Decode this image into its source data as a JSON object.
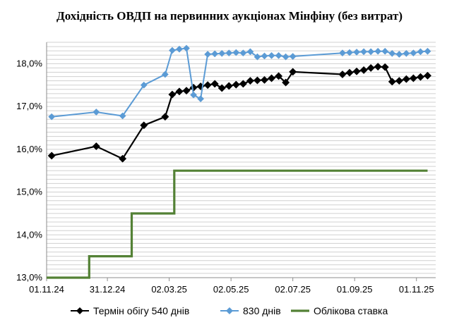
{
  "chart_data": {
    "type": "line",
    "title": "Дохідність ОВДП на первинних аукціонах Мінфіну (без витрат)",
    "xlabel": "",
    "ylabel": "",
    "ylim": [
      13.0,
      18.5
    ],
    "yticks": [
      "13,0%",
      "14,0%",
      "15,0%",
      "16,0%",
      "17,0%",
      "18,0%"
    ],
    "xlim": [
      "2024-11-01",
      "2025-11-20"
    ],
    "xticks": [
      {
        "date": "2024-11-01",
        "label": "01.11.24"
      },
      {
        "date": "2024-12-31",
        "label": "31.12.24"
      },
      {
        "date": "2025-03-02",
        "label": "02.03.25"
      },
      {
        "date": "2025-05-02",
        "label": "02.05.25"
      },
      {
        "date": "2025-07-02",
        "label": "02.07.25"
      },
      {
        "date": "2025-09-01",
        "label": "01.09.25"
      },
      {
        "date": "2025-11-01",
        "label": "01.11.25"
      }
    ],
    "grid": true,
    "legend_position": "bottom",
    "series": [
      {
        "name": "Термін обігу 540 днів",
        "color": "#000000",
        "marker": "diamond",
        "points": [
          [
            "2024-11-06",
            15.85
          ],
          [
            "2024-12-20",
            16.07
          ],
          [
            "2025-01-15",
            15.78
          ],
          [
            "2025-02-05",
            16.56
          ],
          [
            "2025-02-26",
            16.76
          ],
          [
            "2025-03-05",
            17.28
          ],
          [
            "2025-03-12",
            17.35
          ],
          [
            "2025-03-19",
            17.37
          ],
          [
            "2025-03-26",
            17.44
          ],
          [
            "2025-04-02",
            17.47
          ],
          [
            "2025-04-09",
            17.5
          ],
          [
            "2025-04-16",
            17.53
          ],
          [
            "2025-04-23",
            17.43
          ],
          [
            "2025-04-30",
            17.48
          ],
          [
            "2025-05-07",
            17.51
          ],
          [
            "2025-05-14",
            17.53
          ],
          [
            "2025-05-21",
            17.6
          ],
          [
            "2025-05-28",
            17.61
          ],
          [
            "2025-06-04",
            17.62
          ],
          [
            "2025-06-11",
            17.66
          ],
          [
            "2025-06-18",
            17.71
          ],
          [
            "2025-06-25",
            17.56
          ],
          [
            "2025-07-02",
            17.81
          ],
          [
            "2025-08-20",
            17.75
          ],
          [
            "2025-08-27",
            17.79
          ],
          [
            "2025-09-03",
            17.82
          ],
          [
            "2025-09-10",
            17.85
          ],
          [
            "2025-09-17",
            17.9
          ],
          [
            "2025-09-24",
            17.93
          ],
          [
            "2025-10-01",
            17.92
          ],
          [
            "2025-10-08",
            17.58
          ],
          [
            "2025-10-15",
            17.6
          ],
          [
            "2025-10-22",
            17.64
          ],
          [
            "2025-10-29",
            17.66
          ],
          [
            "2025-11-05",
            17.69
          ],
          [
            "2025-11-12",
            17.72
          ]
        ]
      },
      {
        "name": "830 днів",
        "color": "#5b9bd5",
        "marker": "diamond",
        "points": [
          [
            "2024-11-06",
            16.76
          ],
          [
            "2024-12-20",
            16.87
          ],
          [
            "2025-01-15",
            16.78
          ],
          [
            "2025-02-05",
            17.5
          ],
          [
            "2025-02-26",
            17.75
          ],
          [
            "2025-03-05",
            18.31
          ],
          [
            "2025-03-12",
            18.34
          ],
          [
            "2025-03-19",
            18.36
          ],
          [
            "2025-03-26",
            17.27
          ],
          [
            "2025-04-02",
            17.18
          ],
          [
            "2025-04-09",
            18.22
          ],
          [
            "2025-04-16",
            18.23
          ],
          [
            "2025-04-23",
            18.24
          ],
          [
            "2025-04-30",
            18.25
          ],
          [
            "2025-05-07",
            18.26
          ],
          [
            "2025-05-14",
            18.25
          ],
          [
            "2025-05-21",
            18.28
          ],
          [
            "2025-05-28",
            18.16
          ],
          [
            "2025-06-04",
            18.18
          ],
          [
            "2025-06-11",
            18.19
          ],
          [
            "2025-06-18",
            18.19
          ],
          [
            "2025-06-25",
            18.16
          ],
          [
            "2025-07-02",
            18.17
          ],
          [
            "2025-08-20",
            18.25
          ],
          [
            "2025-08-27",
            18.26
          ],
          [
            "2025-09-03",
            18.27
          ],
          [
            "2025-09-10",
            18.28
          ],
          [
            "2025-09-17",
            18.28
          ],
          [
            "2025-09-24",
            18.29
          ],
          [
            "2025-10-01",
            18.29
          ],
          [
            "2025-10-08",
            18.24
          ],
          [
            "2025-10-15",
            18.22
          ],
          [
            "2025-10-22",
            18.24
          ],
          [
            "2025-10-29",
            18.25
          ],
          [
            "2025-11-05",
            18.28
          ],
          [
            "2025-11-12",
            18.29
          ]
        ]
      },
      {
        "name": "Облікова ставка",
        "color": "#538135",
        "marker": "none",
        "step": true,
        "points": [
          [
            "2024-11-01",
            13.0
          ],
          [
            "2024-12-13",
            13.0
          ],
          [
            "2024-12-13",
            13.5
          ],
          [
            "2025-01-24",
            13.5
          ],
          [
            "2025-01-24",
            14.5
          ],
          [
            "2025-03-07",
            14.5
          ],
          [
            "2025-03-07",
            15.5
          ],
          [
            "2025-11-12",
            15.5
          ]
        ]
      }
    ]
  }
}
